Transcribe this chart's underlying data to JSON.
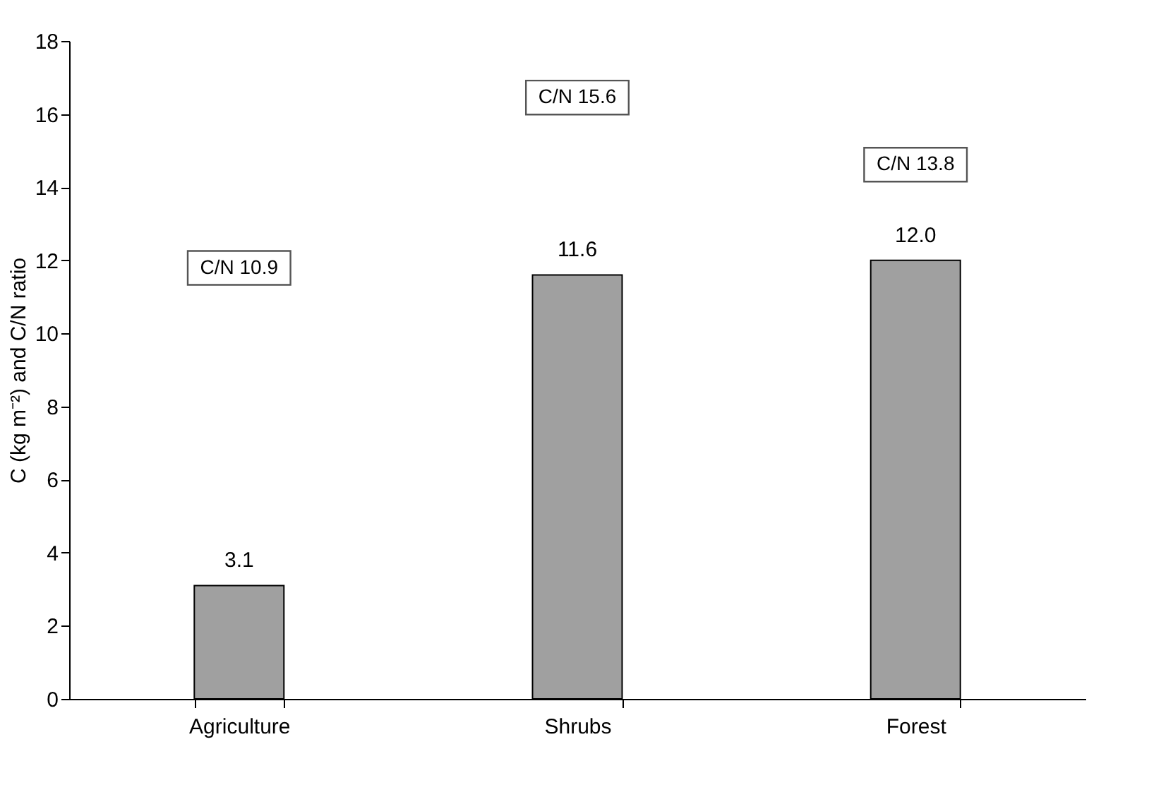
{
  "chart_data": {
    "type": "bar",
    "ylabel": "C (kg m⁻²) and C/N ratio",
    "categories": [
      "Agriculture",
      "Shrubs",
      "Forest"
    ],
    "values": [
      3.1,
      11.6,
      12.0
    ],
    "value_labels": [
      "3.1",
      "11.6",
      "12.0"
    ],
    "color": "#a0a0a0",
    "ylim": [
      0,
      18
    ],
    "yticks": [
      0,
      2,
      4,
      6,
      8,
      10,
      12,
      14,
      16,
      18
    ],
    "annotations": [
      "C/N 10.9",
      "C/N 15.6",
      "C/N 13.8"
    ]
  }
}
